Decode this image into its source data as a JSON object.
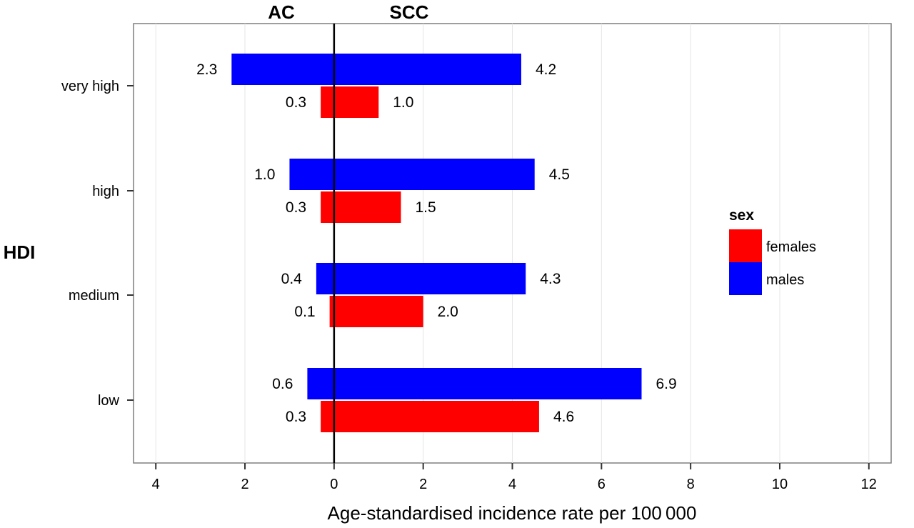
{
  "chart_data": {
    "type": "bar",
    "orientation": "horizontal",
    "diverging": true,
    "left_group_label": "AC",
    "right_group_label": "SCC",
    "ylabel": "HDI",
    "xlabel": "Age-standardised incidence rate per 100 000",
    "categories": [
      "very high",
      "high",
      "medium",
      "low"
    ],
    "xlim": [
      -4.5,
      12.5
    ],
    "xticks": [
      -4,
      -2,
      0,
      2,
      4,
      6,
      8,
      10,
      12
    ],
    "xtick_labels": [
      "4",
      "2",
      "0",
      "2",
      "4",
      "6",
      "8",
      "10",
      "12"
    ],
    "grid": true,
    "legend_position": "right",
    "legend_title": "sex",
    "series": [
      {
        "name": "males",
        "color": "#0000ff",
        "AC": [
          2.3,
          1.0,
          0.4,
          0.6
        ],
        "SCC": [
          4.2,
          4.5,
          4.3,
          6.9
        ],
        "AC_labels": [
          "2.3",
          "1.0",
          "0.4",
          "0.6"
        ],
        "SCC_labels": [
          "4.2",
          "4.5",
          "4.3",
          "6.9"
        ]
      },
      {
        "name": "females",
        "color": "#ff0000",
        "AC": [
          0.3,
          0.3,
          0.1,
          0.3
        ],
        "SCC": [
          1.0,
          1.5,
          2.0,
          4.6
        ],
        "AC_labels": [
          "0.3",
          "0.3",
          "0.1",
          "0.3"
        ],
        "SCC_labels": [
          "1.0",
          "1.5",
          "2.0",
          "4.6"
        ]
      }
    ],
    "legend_order": [
      "females",
      "males"
    ]
  }
}
